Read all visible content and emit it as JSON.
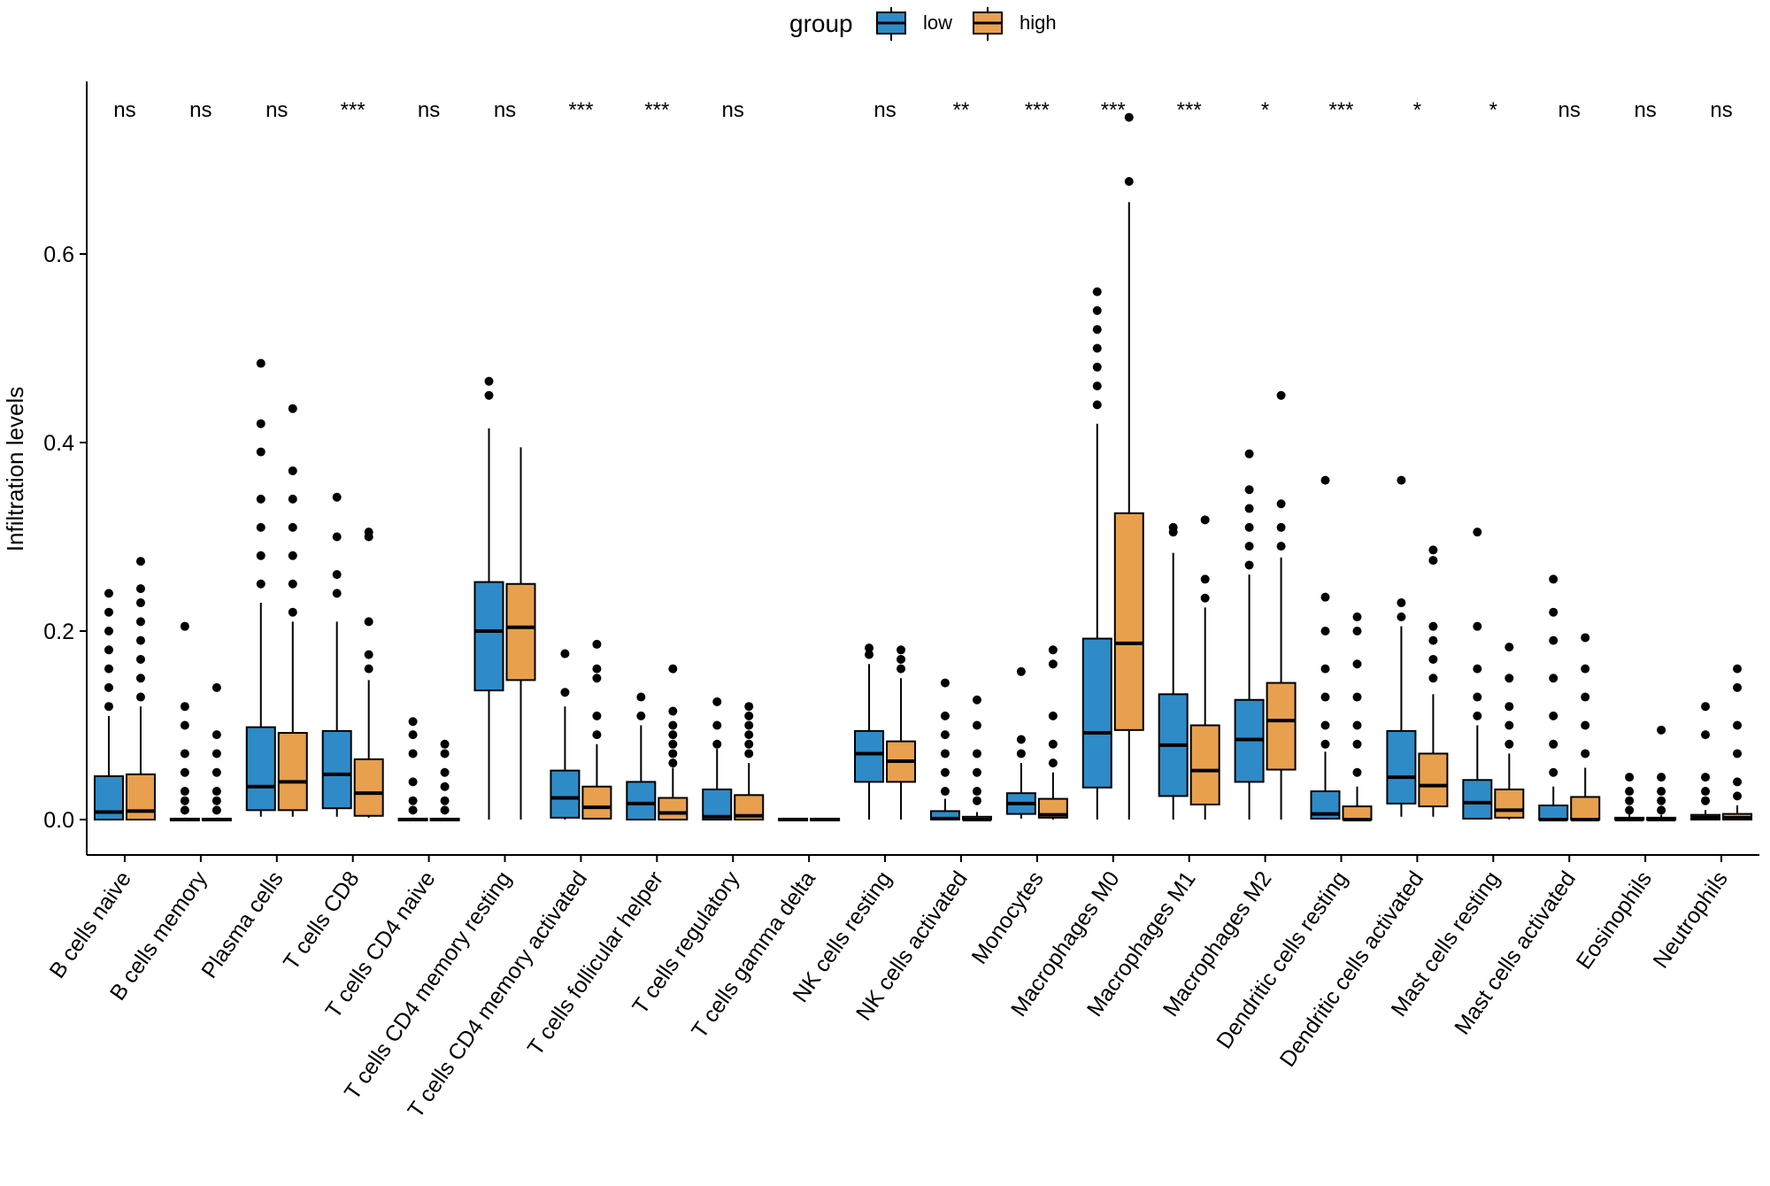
{
  "chart_data": {
    "type": "boxplot",
    "title": "",
    "xlabel": "",
    "ylabel": "Infiltration levels",
    "ylim": [
      -0.04,
      0.79
    ],
    "yticks": [
      0.0,
      0.2,
      0.4,
      0.6
    ],
    "ytick_labels": [
      "0.0",
      "0.2",
      "0.4",
      "0.6"
    ],
    "grid": false,
    "legend": {
      "title": "group",
      "position": "top",
      "entries": [
        {
          "name": "low",
          "color": "#2E8BC8"
        },
        {
          "name": "high",
          "color": "#E8A04E"
        }
      ]
    },
    "categories": [
      "B cells naive",
      "B cells memory",
      "Plasma cells",
      "T cells CD8",
      "T cells CD4 naive",
      "T cells CD4 memory resting",
      "T cells CD4 memory activated",
      "T cells follicular helper",
      "T cells regulatory",
      "T cells gamma delta",
      "NK cells resting",
      "NK cells activated",
      "Monocytes",
      "Macrophages M0",
      "Macrophages M1",
      "Macrophages M2",
      "Dendritic cells resting",
      "Dendritic cells activated",
      "Mast cells resting",
      "Mast cells activated",
      "Eosinophils",
      "Neutrophils"
    ],
    "significance": [
      "ns",
      "ns",
      "ns",
      "***",
      "ns",
      "ns",
      "***",
      "***",
      "ns",
      "",
      "ns",
      "**",
      "***",
      "***",
      "***",
      "*",
      "***",
      "*",
      "*",
      "ns",
      "ns",
      "ns"
    ],
    "series": [
      {
        "name": "low",
        "boxes": [
          {
            "lo": 0,
            "q1": 0,
            "med": 0.008,
            "q3": 0.046,
            "hi": 0.11,
            "out": [
              0.12,
              0.14,
              0.16,
              0.18,
              0.2,
              0.22,
              0.24
            ]
          },
          {
            "lo": 0,
            "q1": 0,
            "med": 0,
            "q3": 0.001,
            "hi": 0.002,
            "out": [
              0.01,
              0.02,
              0.03,
              0.05,
              0.07,
              0.1,
              0.12,
              0.205
            ]
          },
          {
            "lo": 0.003,
            "q1": 0.01,
            "med": 0.035,
            "q3": 0.098,
            "hi": 0.23,
            "out": [
              0.25,
              0.28,
              0.31,
              0.34,
              0.39,
              0.42,
              0.484
            ]
          },
          {
            "lo": 0.003,
            "q1": 0.012,
            "med": 0.048,
            "q3": 0.094,
            "hi": 0.21,
            "out": [
              0.24,
              0.26,
              0.3,
              0.342
            ]
          },
          {
            "lo": 0,
            "q1": 0,
            "med": 0,
            "q3": 0.001,
            "hi": 0.002,
            "out": [
              0.01,
              0.02,
              0.04,
              0.07,
              0.09,
              0.104
            ]
          },
          {
            "lo": 0,
            "q1": 0.137,
            "med": 0.2,
            "q3": 0.252,
            "hi": 0.415,
            "out": [
              0.45,
              0.465
            ]
          },
          {
            "lo": 0,
            "q1": 0.002,
            "med": 0.023,
            "q3": 0.052,
            "hi": 0.12,
            "out": [
              0.135,
              0.176
            ]
          },
          {
            "lo": 0,
            "q1": 0,
            "med": 0.017,
            "q3": 0.04,
            "hi": 0.1,
            "out": [
              0.11,
              0.13
            ]
          },
          {
            "lo": 0,
            "q1": 0,
            "med": 0.003,
            "q3": 0.032,
            "hi": 0.075,
            "out": [
              0.08,
              0.1,
              0.125
            ]
          },
          {
            "lo": 0,
            "q1": 0,
            "med": 0,
            "q3": 0.001,
            "hi": 0.001,
            "out": []
          },
          {
            "lo": 0,
            "q1": 0.04,
            "med": 0.07,
            "q3": 0.094,
            "hi": 0.165,
            "out": [
              0.175,
              0.182
            ]
          },
          {
            "lo": 0,
            "q1": 0,
            "med": 0.001,
            "q3": 0.009,
            "hi": 0.022,
            "out": [
              0.03,
              0.05,
              0.07,
              0.09,
              0.11,
              0.145
            ]
          },
          {
            "lo": 0.001,
            "q1": 0.006,
            "med": 0.017,
            "q3": 0.028,
            "hi": 0.06,
            "out": [
              0.07,
              0.085,
              0.157
            ]
          },
          {
            "lo": 0,
            "q1": 0.034,
            "med": 0.092,
            "q3": 0.192,
            "hi": 0.42,
            "out": [
              0.44,
              0.46,
              0.48,
              0.5,
              0.52,
              0.54,
              0.56
            ]
          },
          {
            "lo": 0,
            "q1": 0.025,
            "med": 0.079,
            "q3": 0.133,
            "hi": 0.283,
            "out": [
              0.305,
              0.31
            ]
          },
          {
            "lo": 0,
            "q1": 0.04,
            "med": 0.085,
            "q3": 0.127,
            "hi": 0.26,
            "out": [
              0.27,
              0.29,
              0.31,
              0.33,
              0.35,
              0.388
            ]
          },
          {
            "lo": 0,
            "q1": 0.001,
            "med": 0.006,
            "q3": 0.03,
            "hi": 0.072,
            "out": [
              0.08,
              0.1,
              0.13,
              0.16,
              0.2,
              0.236,
              0.36
            ]
          },
          {
            "lo": 0.003,
            "q1": 0.017,
            "med": 0.045,
            "q3": 0.094,
            "hi": 0.205,
            "out": [
              0.215,
              0.23,
              0.36
            ]
          },
          {
            "lo": 0,
            "q1": 0.001,
            "med": 0.018,
            "q3": 0.042,
            "hi": 0.1,
            "out": [
              0.11,
              0.13,
              0.16,
              0.205,
              0.305
            ]
          },
          {
            "lo": 0,
            "q1": 0,
            "med": 0,
            "q3": 0.015,
            "hi": 0.035,
            "out": [
              0.05,
              0.08,
              0.11,
              0.15,
              0.19,
              0.22,
              0.255
            ]
          },
          {
            "lo": 0,
            "q1": 0,
            "med": 0,
            "q3": 0.002,
            "hi": 0.006,
            "out": [
              0.01,
              0.02,
              0.03,
              0.045
            ]
          },
          {
            "lo": 0,
            "q1": 0,
            "med": 0.002,
            "q3": 0.005,
            "hi": 0.01,
            "out": [
              0.02,
              0.03,
              0.045,
              0.09,
              0.12
            ]
          }
        ]
      },
      {
        "name": "high",
        "boxes": [
          {
            "lo": 0,
            "q1": 0,
            "med": 0.009,
            "q3": 0.048,
            "hi": 0.12,
            "out": [
              0.13,
              0.15,
              0.17,
              0.19,
              0.21,
              0.23,
              0.245,
              0.274
            ]
          },
          {
            "lo": 0,
            "q1": 0,
            "med": 0,
            "q3": 0.001,
            "hi": 0.002,
            "out": [
              0.01,
              0.02,
              0.03,
              0.05,
              0.07,
              0.09,
              0.14
            ]
          },
          {
            "lo": 0.003,
            "q1": 0.01,
            "med": 0.04,
            "q3": 0.092,
            "hi": 0.21,
            "out": [
              0.22,
              0.25,
              0.28,
              0.31,
              0.34,
              0.37,
              0.436
            ]
          },
          {
            "lo": 0.002,
            "q1": 0.004,
            "med": 0.028,
            "q3": 0.064,
            "hi": 0.148,
            "out": [
              0.16,
              0.175,
              0.21,
              0.3,
              0.305
            ]
          },
          {
            "lo": 0,
            "q1": 0,
            "med": 0,
            "q3": 0.001,
            "hi": 0.002,
            "out": [
              0.01,
              0.02,
              0.035,
              0.05,
              0.07,
              0.08
            ]
          },
          {
            "lo": 0,
            "q1": 0.148,
            "med": 0.204,
            "q3": 0.25,
            "hi": 0.395,
            "out": []
          },
          {
            "lo": 0,
            "q1": 0.001,
            "med": 0.013,
            "q3": 0.035,
            "hi": 0.08,
            "out": [
              0.09,
              0.11,
              0.15,
              0.16,
              0.186
            ]
          },
          {
            "lo": 0,
            "q1": 0,
            "med": 0.007,
            "q3": 0.023,
            "hi": 0.055,
            "out": [
              0.06,
              0.07,
              0.08,
              0.09,
              0.1,
              0.115,
              0.16
            ]
          },
          {
            "lo": 0,
            "q1": 0,
            "med": 0.004,
            "q3": 0.026,
            "hi": 0.06,
            "out": [
              0.07,
              0.08,
              0.09,
              0.1,
              0.11,
              0.12
            ]
          },
          {
            "lo": 0,
            "q1": 0,
            "med": 0,
            "q3": 0.001,
            "hi": 0.001,
            "out": []
          },
          {
            "lo": 0,
            "q1": 0.04,
            "med": 0.062,
            "q3": 0.083,
            "hi": 0.15,
            "out": [
              0.16,
              0.17,
              0.18
            ]
          },
          {
            "lo": 0,
            "q1": 0,
            "med": 0,
            "q3": 0.003,
            "hi": 0.008,
            "out": [
              0.02,
              0.03,
              0.05,
              0.07,
              0.1,
              0.127
            ]
          },
          {
            "lo": 0,
            "q1": 0.002,
            "med": 0.005,
            "q3": 0.022,
            "hi": 0.05,
            "out": [
              0.06,
              0.08,
              0.11,
              0.165,
              0.18
            ]
          },
          {
            "lo": 0,
            "q1": 0.095,
            "med": 0.187,
            "q3": 0.325,
            "hi": 0.655,
            "out": [
              0.677,
              0.745
            ]
          },
          {
            "lo": 0,
            "q1": 0.016,
            "med": 0.052,
            "q3": 0.1,
            "hi": 0.225,
            "out": [
              0.235,
              0.255,
              0.318
            ]
          },
          {
            "lo": 0,
            "q1": 0.053,
            "med": 0.105,
            "q3": 0.145,
            "hi": 0.278,
            "out": [
              0.29,
              0.31,
              0.335,
              0.45
            ]
          },
          {
            "lo": 0,
            "q1": 0,
            "med": 0,
            "q3": 0.014,
            "hi": 0.035,
            "out": [
              0.05,
              0.08,
              0.1,
              0.13,
              0.165,
              0.2,
              0.215
            ]
          },
          {
            "lo": 0.003,
            "q1": 0.014,
            "med": 0.036,
            "q3": 0.07,
            "hi": 0.133,
            "out": [
              0.15,
              0.17,
              0.19,
              0.205,
              0.275,
              0.286
            ]
          },
          {
            "lo": 0,
            "q1": 0.002,
            "med": 0.01,
            "q3": 0.032,
            "hi": 0.07,
            "out": [
              0.08,
              0.1,
              0.12,
              0.15,
              0.183
            ]
          },
          {
            "lo": 0,
            "q1": 0,
            "med": 0,
            "q3": 0.024,
            "hi": 0.055,
            "out": [
              0.07,
              0.1,
              0.13,
              0.16,
              0.193
            ]
          },
          {
            "lo": 0,
            "q1": 0,
            "med": 0,
            "q3": 0.002,
            "hi": 0.005,
            "out": [
              0.01,
              0.02,
              0.03,
              0.045,
              0.095
            ]
          },
          {
            "lo": 0,
            "q1": 0,
            "med": 0.002,
            "q3": 0.006,
            "hi": 0.015,
            "out": [
              0.025,
              0.04,
              0.07,
              0.1,
              0.14,
              0.16
            ]
          }
        ]
      }
    ]
  }
}
